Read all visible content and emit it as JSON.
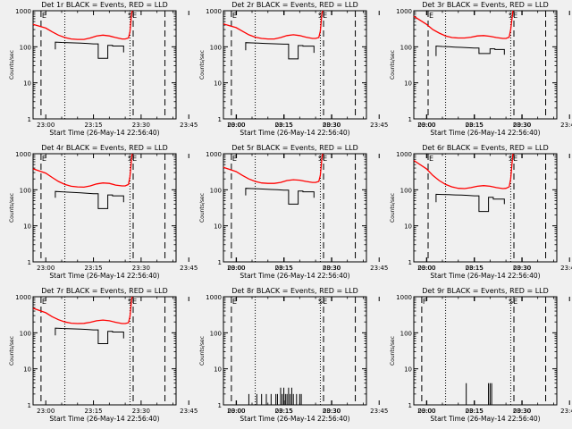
{
  "colors": {
    "background": "#f0f0f0",
    "axes": "#000000",
    "events": "#000000",
    "lld": "#ff0000"
  },
  "shared": {
    "xlabel": "Start Time (26-May-14 22:56:40)",
    "ylabel": "Counts/sec",
    "x_tick_labels": [
      "23:00",
      "23:15",
      "23:30",
      "23:45",
      "00:00",
      "00:15",
      "00:30"
    ],
    "y_tick_labels": [
      "1",
      "10",
      "100",
      "1000"
    ]
  },
  "chart_data": [
    {
      "type": "line",
      "title": "Det 1r BLACK = Events, RED = LLD",
      "xlabel": "Start Time (26-May-14 22:56:40)",
      "ylabel": "Counts/sec",
      "x_unit": "minutes after 23:00",
      "xlim": [
        -4,
        41
      ],
      "ylim": [
        1,
        1000
      ],
      "yscale": "log",
      "dashed_vlines": [
        -1.5,
        27.5,
        37.5
      ],
      "dotted_vlines": [
        6,
        26.5
      ],
      "markers": [
        "E",
        "SE"
      ],
      "series": [
        {
          "name": "LLD",
          "x": [
            -4,
            0,
            2,
            4,
            6,
            8,
            10,
            12,
            14,
            16,
            18,
            20,
            22,
            24,
            25,
            26,
            26.5,
            27,
            27.2
          ],
          "y": [
            420,
            330,
            260,
            210,
            180,
            165,
            160,
            160,
            175,
            200,
            210,
            200,
            180,
            165,
            165,
            175,
            260,
            800,
            1000
          ]
        },
        {
          "name": "Events",
          "x": [
            3,
            3,
            5,
            7,
            9,
            11,
            13,
            15,
            16.5,
            16.5,
            19.5,
            19.5,
            21,
            21,
            24.5,
            24.5
          ],
          "y": [
            85,
            135,
            132,
            130,
            128,
            126,
            124,
            120,
            120,
            48,
            48,
            110,
            110,
            105,
            105,
            70
          ]
        }
      ]
    },
    {
      "type": "line",
      "title": "Det 2r BLACK = Events, RED = LLD",
      "xlabel": "Start Time (26-May-14 22:56:40)",
      "ylabel": "Counts/sec",
      "x_unit": "minutes after 23:00",
      "xlim": [
        -4,
        41
      ],
      "ylim": [
        1,
        1000
      ],
      "yscale": "log",
      "dashed_vlines": [
        -1.5,
        27.5,
        37.5
      ],
      "dotted_vlines": [
        6,
        26.5
      ],
      "markers": [
        "E",
        "SE"
      ],
      "series": [
        {
          "name": "LLD",
          "x": [
            -4,
            0,
            2,
            4,
            6,
            8,
            10,
            12,
            14,
            16,
            18,
            20,
            22,
            24,
            25,
            26,
            26.5,
            27,
            27.2
          ],
          "y": [
            430,
            340,
            270,
            215,
            185,
            170,
            165,
            165,
            180,
            205,
            215,
            205,
            185,
            170,
            170,
            180,
            270,
            820,
            1000
          ]
        },
        {
          "name": "Events",
          "x": [
            3,
            3,
            5,
            7,
            9,
            11,
            13,
            15,
            16.5,
            16.5,
            19.5,
            19.5,
            21,
            21,
            24.5,
            24.5
          ],
          "y": [
            80,
            130,
            128,
            126,
            124,
            122,
            120,
            118,
            118,
            46,
            46,
            108,
            108,
            104,
            104,
            68
          ]
        }
      ]
    },
    {
      "type": "line",
      "title": "Det 3r BLACK = Events, RED = LLD",
      "xlabel": "Start Time (26-May-14 22:56:40)",
      "ylabel": "Counts/sec",
      "x_unit": "minutes after 23:00",
      "xlim": [
        -4,
        41
      ],
      "ylim": [
        1,
        1000
      ],
      "yscale": "log",
      "dashed_vlines": [
        0.5,
        27.5,
        37.5
      ],
      "dotted_vlines": [
        6,
        26.5
      ],
      "markers": [
        "E",
        "SE"
      ],
      "series": [
        {
          "name": "LLD",
          "x": [
            -4,
            0,
            2,
            4,
            6,
            8,
            10,
            12,
            14,
            16,
            18,
            20,
            22,
            24,
            25,
            26,
            26.5,
            27,
            27.2
          ],
          "y": [
            700,
            420,
            300,
            240,
            200,
            180,
            175,
            175,
            185,
            200,
            205,
            195,
            180,
            170,
            170,
            185,
            300,
            700,
            1000
          ]
        },
        {
          "name": "Events",
          "x": [
            3,
            3,
            5,
            7,
            9,
            11,
            13,
            15,
            16.5,
            16.5,
            20,
            20,
            21.5,
            21.5,
            24.5,
            24.5
          ],
          "y": [
            55,
            105,
            102,
            100,
            98,
            96,
            94,
            92,
            92,
            65,
            65,
            88,
            88,
            84,
            84,
            60
          ]
        }
      ]
    },
    {
      "type": "line",
      "title": "Det 4r BLACK = Events, RED = LLD",
      "xlabel": "Start Time (26-May-14 22:56:40)",
      "ylabel": "Counts/sec",
      "x_unit": "minutes after 23:00",
      "xlim": [
        -4,
        41
      ],
      "ylim": [
        1,
        1000
      ],
      "yscale": "log",
      "dashed_vlines": [
        -1.5,
        27.5,
        37.5
      ],
      "dotted_vlines": [
        6,
        26.5
      ],
      "markers": [
        "E",
        "SE"
      ],
      "series": [
        {
          "name": "LLD",
          "x": [
            -4,
            0,
            2,
            4,
            6,
            8,
            10,
            12,
            14,
            16,
            18,
            20,
            22,
            24,
            25,
            26,
            26.5,
            27,
            27.2
          ],
          "y": [
            380,
            290,
            220,
            170,
            140,
            125,
            120,
            118,
            128,
            145,
            155,
            150,
            135,
            128,
            128,
            140,
            230,
            700,
            1000
          ]
        },
        {
          "name": "Events",
          "x": [
            3,
            3,
            5,
            7,
            9,
            11,
            13,
            15,
            16.5,
            16.5,
            19.5,
            19.5,
            21,
            21,
            24.5,
            24.5
          ],
          "y": [
            60,
            90,
            88,
            86,
            84,
            82,
            80,
            78,
            78,
            30,
            30,
            72,
            72,
            68,
            68,
            45
          ]
        }
      ]
    },
    {
      "type": "line",
      "title": "Det 5r BLACK = Events, RED = LLD",
      "xlabel": "Start Time (26-May-14 22:56:40)",
      "ylabel": "Counts/sec",
      "x_unit": "minutes after 23:00",
      "xlim": [
        -4,
        41
      ],
      "ylim": [
        1,
        1000
      ],
      "yscale": "log",
      "dashed_vlines": [
        -1.5,
        27.5,
        37.5
      ],
      "dotted_vlines": [
        6,
        26.5
      ],
      "markers": [
        "E",
        "SE"
      ],
      "series": [
        {
          "name": "LLD",
          "x": [
            -4,
            0,
            2,
            4,
            6,
            8,
            10,
            12,
            14,
            16,
            18,
            20,
            22,
            24,
            25,
            26,
            26.5,
            27,
            27.2
          ],
          "y": [
            420,
            320,
            250,
            200,
            170,
            155,
            150,
            150,
            160,
            180,
            190,
            185,
            170,
            160,
            160,
            170,
            250,
            750,
            1000
          ]
        },
        {
          "name": "Events",
          "x": [
            3,
            3,
            5,
            7,
            9,
            11,
            13,
            15,
            16.5,
            16.5,
            19.5,
            19.5,
            21,
            21,
            24.5,
            24.5
          ],
          "y": [
            70,
            110,
            108,
            106,
            104,
            102,
            100,
            98,
            98,
            40,
            40,
            92,
            92,
            88,
            88,
            60
          ]
        }
      ]
    },
    {
      "type": "line",
      "title": "Det 6r BLACK = Events, RED = LLD",
      "xlabel": "Start Time (26-May-14 22:56:40)",
      "ylabel": "Counts/sec",
      "x_unit": "minutes after 23:00",
      "xlim": [
        -4,
        41
      ],
      "ylim": [
        1,
        1000
      ],
      "yscale": "log",
      "dashed_vlines": [
        0.5,
        27.5,
        37.5
      ],
      "dotted_vlines": [
        6,
        26.5
      ],
      "markers": [
        "E",
        "SE"
      ],
      "series": [
        {
          "name": "LLD",
          "x": [
            -4,
            0,
            2,
            4,
            6,
            8,
            10,
            12,
            14,
            16,
            18,
            20,
            22,
            24,
            25,
            26,
            26.5,
            27,
            27.2
          ],
          "y": [
            650,
            380,
            250,
            180,
            140,
            120,
            110,
            108,
            115,
            125,
            130,
            125,
            115,
            108,
            110,
            120,
            200,
            650,
            1000
          ]
        },
        {
          "name": "Events",
          "x": [
            3,
            3,
            5,
            7,
            9,
            11,
            13,
            15,
            16.5,
            16.5,
            19.5,
            19.5,
            21,
            21,
            24.5,
            24.5
          ],
          "y": [
            45,
            75,
            74,
            73,
            72,
            71,
            70,
            68,
            68,
            25,
            25,
            62,
            62,
            55,
            55,
            40
          ]
        }
      ]
    },
    {
      "type": "line",
      "title": "Det 7r BLACK = Events, RED = LLD",
      "xlabel": "Start Time (26-May-14 22:56:40)",
      "ylabel": "Counts/sec",
      "x_unit": "minutes after 23:00",
      "xlim": [
        -4,
        41
      ],
      "ylim": [
        1,
        1000
      ],
      "yscale": "log",
      "dashed_vlines": [
        -1.5,
        27.5,
        37.5
      ],
      "dotted_vlines": [
        6,
        26.5
      ],
      "markers": [
        "E",
        "SE"
      ],
      "series": [
        {
          "name": "LLD",
          "x": [
            -4,
            0,
            2,
            4,
            6,
            8,
            10,
            12,
            14,
            16,
            18,
            20,
            22,
            24,
            25,
            26,
            26.5,
            27,
            27.2
          ],
          "y": [
            480,
            360,
            280,
            230,
            200,
            185,
            180,
            182,
            195,
            215,
            225,
            215,
            195,
            180,
            180,
            190,
            280,
            800,
            1000
          ]
        },
        {
          "name": "Events",
          "x": [
            3,
            3,
            5,
            7,
            9,
            11,
            13,
            15,
            16.5,
            16.5,
            19.5,
            19.5,
            21,
            21,
            24.5,
            24.5
          ],
          "y": [
            85,
            135,
            132,
            130,
            128,
            126,
            124,
            120,
            120,
            50,
            50,
            110,
            110,
            105,
            105,
            70
          ]
        }
      ]
    },
    {
      "type": "bar",
      "title": "Det 8r BLACK = Events, RED = LLD",
      "xlabel": "Start Time (26-May-14 22:56:40)",
      "ylabel": "Counts/sec",
      "x_unit": "minutes after 23:00",
      "xlim": [
        -4,
        41
      ],
      "ylim": [
        1,
        1000
      ],
      "yscale": "log",
      "dashed_vlines": [
        -1.5,
        27.5,
        37.5
      ],
      "dotted_vlines": [
        6,
        26.5
      ],
      "markers": [
        "E",
        "SE"
      ],
      "spikes": {
        "x": [
          4,
          6.5,
          8,
          9.5,
          11,
          12.5,
          13,
          14,
          14.5,
          15,
          15.5,
          16,
          16.5,
          17,
          17.5,
          18,
          19,
          20,
          20.5
        ],
        "y": [
          2,
          2,
          2,
          2,
          2,
          2,
          2,
          3,
          2,
          3,
          2,
          2,
          3,
          2,
          3,
          2,
          2,
          2,
          2
        ]
      }
    },
    {
      "type": "bar",
      "title": "Det 9r BLACK = Events, RED = LLD",
      "xlabel": "Start Time (26-May-14 22:56:40)",
      "ylabel": "Counts/sec",
      "x_unit": "minutes after 23:00",
      "xlim": [
        -4,
        41
      ],
      "ylim": [
        1,
        1000
      ],
      "yscale": "log",
      "dashed_vlines": [
        -1.5,
        27.5,
        37.5
      ],
      "dotted_vlines": [
        6,
        26.5
      ],
      "markers": [
        "F",
        "SE"
      ],
      "spikes": {
        "x": [
          12.5,
          19.5,
          20,
          20.5
        ],
        "y": [
          4,
          4,
          4,
          4
        ]
      }
    }
  ]
}
